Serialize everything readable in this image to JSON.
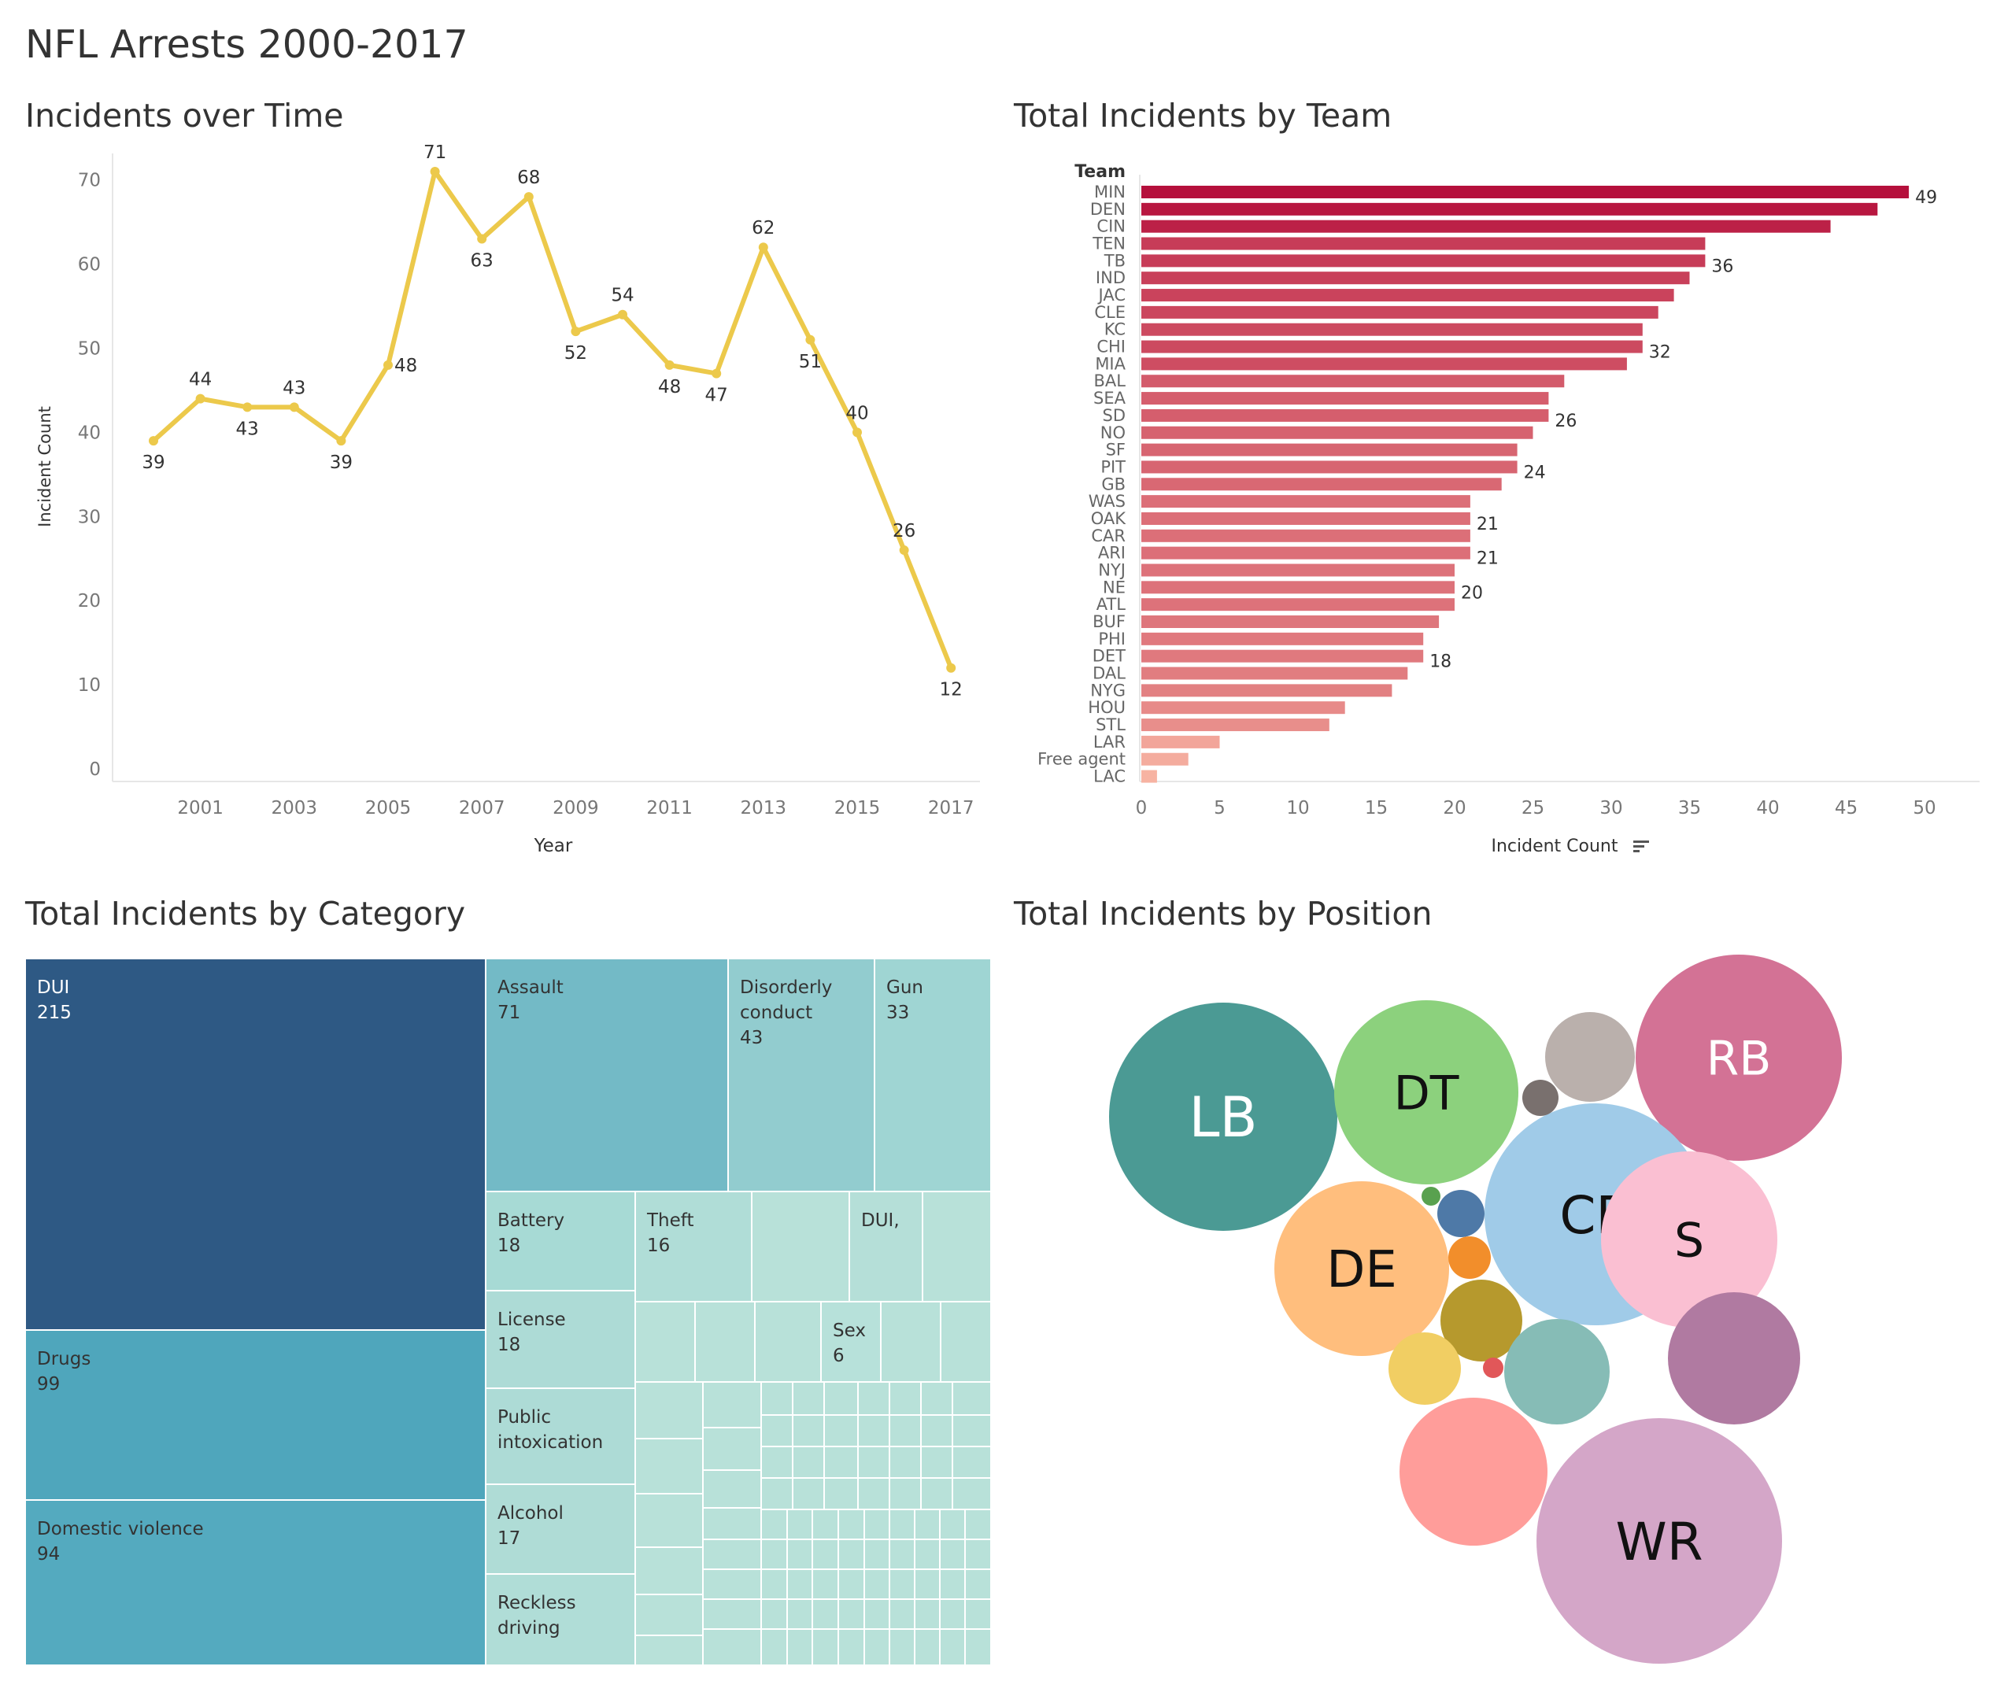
{
  "dashboard_title": "NFL Arrests 2000-2017",
  "panels": {
    "time": "Incidents over Time",
    "team": "Total Incidents by Team",
    "category": "Total Incidents by Category",
    "position": "Total Incidents by Position"
  },
  "chart_data": [
    {
      "type": "line",
      "title": "Incidents over Time",
      "xlabel": "Year",
      "ylabel": "Incident Count",
      "ylim": [
        0,
        75
      ],
      "y_ticks": [
        0,
        10,
        20,
        30,
        40,
        50,
        60,
        70
      ],
      "x_ticks": [
        2001,
        2003,
        2005,
        2007,
        2009,
        2011,
        2013,
        2015,
        2017
      ],
      "x": [
        2000,
        2001,
        2002,
        2003,
        2004,
        2005,
        2006,
        2007,
        2008,
        2009,
        2010,
        2011,
        2012,
        2013,
        2014,
        2015,
        2016,
        2017
      ],
      "values": [
        39,
        44,
        43,
        43,
        39,
        48,
        71,
        63,
        68,
        52,
        54,
        48,
        47,
        62,
        51,
        40,
        26,
        12
      ],
      "label_position": [
        "below",
        "above",
        "below",
        "above",
        "below",
        "right",
        "above",
        "below",
        "above",
        "below",
        "above",
        "below",
        "below",
        "above",
        "below",
        "above",
        "above",
        "below"
      ],
      "color": "#ECC94B",
      "grid": false
    },
    {
      "type": "bar",
      "orientation": "horizontal",
      "title": "Total Incidents by Team",
      "category_header": "Team",
      "xlabel": "Incident Count",
      "xlim": [
        0,
        52
      ],
      "x_ticks": [
        0,
        5,
        10,
        15,
        20,
        25,
        30,
        35,
        40,
        45,
        50
      ],
      "categories": [
        "MIN",
        "DEN",
        "CIN",
        "TEN",
        "TB",
        "IND",
        "JAC",
        "CLE",
        "KC",
        "CHI",
        "MIA",
        "BAL",
        "SEA",
        "SD",
        "NO",
        "SF",
        "PIT",
        "GB",
        "WAS",
        "OAK",
        "CAR",
        "ARI",
        "NYJ",
        "NE",
        "ATL",
        "BUF",
        "PHI",
        "DET",
        "DAL",
        "NYG",
        "HOU",
        "STL",
        "LAR",
        "Free agent",
        "LAC"
      ],
      "values": [
        49,
        47,
        44,
        36,
        36,
        35,
        34,
        33,
        32,
        32,
        31,
        27,
        26,
        26,
        25,
        24,
        24,
        23,
        21,
        21,
        21,
        21,
        20,
        20,
        20,
        19,
        18,
        18,
        17,
        16,
        13,
        12,
        5,
        3,
        1
      ],
      "labeled": [
        "MIN",
        "TB",
        "CHI",
        "SD",
        "PIT",
        "OAK",
        "ARI",
        "NE",
        "DET"
      ],
      "color_scale": [
        "#F7B3A2",
        "#B5103C"
      ]
    },
    {
      "type": "treemap",
      "title": "Total Incidents by Category",
      "items": [
        {
          "name": "DUI",
          "value": 215,
          "shown": "215",
          "color": "#2E5984"
        },
        {
          "name": "Drugs",
          "value": 99,
          "shown": "99",
          "color": "#4FA6BC"
        },
        {
          "name": "Domestic violence",
          "value": 94,
          "shown": "94",
          "color": "#54AABF"
        },
        {
          "name": "Assault",
          "value": 71,
          "shown": "71",
          "color": "#73BAC6"
        },
        {
          "name": "Disorderly conduct",
          "value": 43,
          "shown": "43",
          "color": "#92CCCF"
        },
        {
          "name": "Gun",
          "value": 33,
          "shown": "33",
          "color": "#9FD5D3"
        },
        {
          "name": "Battery",
          "value": 18,
          "shown": "18",
          "color": "#A7DAD5"
        },
        {
          "name": "Theft",
          "value": 16,
          "shown": "16",
          "color": "#B0DDD7"
        },
        {
          "name": "DUI,",
          "value": 10,
          "shown": "",
          "color": "#B5DFD8"
        },
        {
          "name": "License",
          "value": 18,
          "shown": "18",
          "color": "#ADDBD6"
        },
        {
          "name": "Sex",
          "value": 6,
          "shown": "6",
          "color": "#B7E1DA"
        },
        {
          "name": "Public intoxication",
          "value": 18,
          "shown": "",
          "color": "#ADDBD6"
        },
        {
          "name": "Alcohol",
          "value": 17,
          "shown": "17",
          "color": "#AFDCD6"
        },
        {
          "name": "Reckless driving",
          "value": 15,
          "shown": "",
          "color": "#B0DDD7"
        }
      ],
      "small_tile_color": "#B8E1D9"
    },
    {
      "type": "bubble",
      "title": "Total Incidents by Position",
      "items": [
        {
          "name": "LB",
          "label": "LB",
          "color": "#4B9A94"
        },
        {
          "name": "DT",
          "label": "DT",
          "color": "#8CD17D"
        },
        {
          "name": "RB",
          "label": "RB",
          "color": "#D37295"
        },
        {
          "name": "CB",
          "label": "CB",
          "color": "#A0CBE8"
        },
        {
          "name": "DE",
          "label": "DE",
          "color": "#FFBE7D"
        },
        {
          "name": "S",
          "label": "S",
          "color": "#FABFD2"
        },
        {
          "name": "WR",
          "label": "WR",
          "color": "#D4A6C8"
        },
        {
          "name": "pos-grey-light",
          "label": "",
          "color": "#BAB0AC"
        },
        {
          "name": "pos-grey-dark",
          "label": "",
          "color": "#79706E"
        },
        {
          "name": "pos-green-small",
          "label": "",
          "color": "#59A14F"
        },
        {
          "name": "pos-blue-small",
          "label": "",
          "color": "#4E79A7"
        },
        {
          "name": "pos-orange-small",
          "label": "",
          "color": "#F28E2B"
        },
        {
          "name": "pos-olive",
          "label": "",
          "color": "#B6992D"
        },
        {
          "name": "pos-yellow",
          "label": "",
          "color": "#F1CE63"
        },
        {
          "name": "pos-red-small",
          "label": "",
          "color": "#E15759"
        },
        {
          "name": "pos-teal",
          "label": "",
          "color": "#86BCB6"
        },
        {
          "name": "pos-purple",
          "label": "",
          "color": "#B07AA1"
        },
        {
          "name": "pos-salmon",
          "label": "",
          "color": "#FF9D9A"
        }
      ]
    }
  ]
}
